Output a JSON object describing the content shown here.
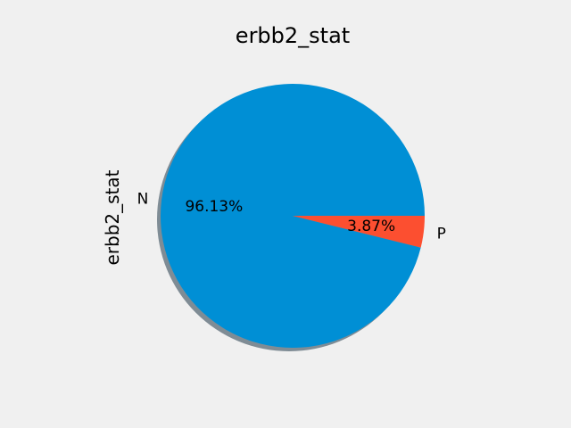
{
  "chart_data": {
    "type": "pie",
    "title": "erbb2_stat",
    "ylabel": "erbb2_stat",
    "slices": [
      {
        "label": "N",
        "value": 96.13,
        "pct_label": "96.13%",
        "color": "#008fd5"
      },
      {
        "label": "P",
        "value": 3.87,
        "pct_label": "3.87%",
        "color": "#fc4f30"
      }
    ],
    "shadow": true,
    "shadow_color": "#7f8c95"
  }
}
